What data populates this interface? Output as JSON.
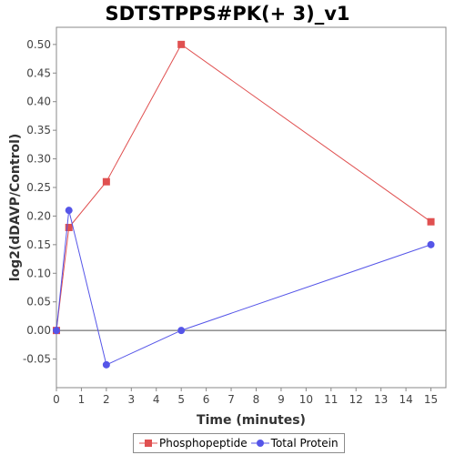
{
  "chart_data": {
    "type": "line",
    "title": "SDTSTPPS#PK(+ 3)_v1",
    "xlabel": "Time (minutes)",
    "ylabel": "log2(dDAVP/Control)",
    "xlim": [
      0,
      15.6
    ],
    "ylim": [
      -0.1,
      0.53
    ],
    "xticks": [
      0,
      1,
      2,
      3,
      4,
      5,
      6,
      7,
      8,
      9,
      10,
      11,
      12,
      13,
      14,
      15
    ],
    "yticks": [
      -0.05,
      0.0,
      0.05,
      0.1,
      0.15,
      0.2,
      0.25,
      0.3,
      0.35,
      0.4,
      0.45,
      0.5
    ],
    "zero_line": true,
    "grid": false,
    "legend_position": "bottom",
    "series": [
      {
        "name": "Phosphopeptide",
        "color": "#e05050",
        "marker": "square",
        "x": [
          0,
          0.5,
          2,
          5,
          15
        ],
        "y": [
          0.0,
          0.18,
          0.26,
          0.5,
          0.19
        ]
      },
      {
        "name": "Total Protein",
        "color": "#5555e8",
        "marker": "circle",
        "x": [
          0,
          0.5,
          2,
          5,
          15
        ],
        "y": [
          0.0,
          0.21,
          -0.06,
          0.0,
          0.15
        ]
      }
    ]
  }
}
